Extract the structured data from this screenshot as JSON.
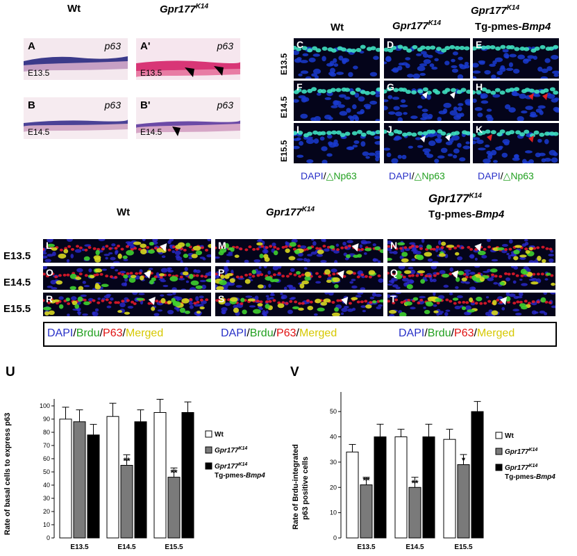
{
  "top_left": {
    "col_headers": [
      "Wt",
      "Gpr177",
      "K14"
    ],
    "panels": [
      {
        "label": "A",
        "gene": "p63",
        "age": "E13.5"
      },
      {
        "label": "A'",
        "gene": "p63",
        "age": "E13.5"
      },
      {
        "label": "B",
        "gene": "p63",
        "age": "E14.5"
      },
      {
        "label": "B'",
        "gene": "p63",
        "age": "E14.5"
      }
    ]
  },
  "top_right": {
    "col_headers": {
      "wt": "Wt",
      "ko": "Gpr177",
      "ko_sup": "K14",
      "tg_line2": "Tg-pmes-",
      "tg_gene": "Bmp4"
    },
    "row_labels": [
      "E13.5",
      "E14.5",
      "E15.5"
    ],
    "panel_labels": [
      "C",
      "D",
      "E",
      "F",
      "G",
      "H",
      "I",
      "J",
      "K"
    ],
    "stain_a": "DAPI",
    "stain_sep": "/",
    "stain_b": "△Np63"
  },
  "middle": {
    "col_headers": {
      "wt": "Wt",
      "ko": "Gpr177",
      "ko_sup": "K14",
      "tg_line2": "Tg-pmes-",
      "tg_gene": "Bmp4"
    },
    "row_labels": [
      "E13.5",
      "E14.5",
      "E15.5"
    ],
    "panel_labels": [
      "L",
      "M",
      "N",
      "O",
      "P",
      "Q",
      "R",
      "S",
      "T"
    ],
    "legend": {
      "dapi": "DAPI",
      "sep": "/",
      "brdu": "Brdu",
      "p63": "P63",
      "merged": "Merged"
    }
  },
  "chart_U": {
    "panel_letter": "U",
    "ylabel": "Rate of basal cells to express p63",
    "yticks": [
      0,
      10,
      20,
      30,
      40,
      50,
      60,
      70,
      80,
      90,
      100
    ],
    "categories": [
      "E13.5",
      "E14.5",
      "E15.5"
    ],
    "annotations": [
      "**",
      "**"
    ],
    "legend": {
      "wt": "Wt",
      "ko": "Gpr177",
      "ko_sup": "K14",
      "tg_line2": "Tg-pmes-",
      "tg_gene": "Bmp4"
    }
  },
  "chart_V": {
    "panel_letter": "V",
    "ylabel_line1": "Rate of Brdu-integrated",
    "ylabel_line2": "p63 positive cells",
    "yticks": [
      0,
      10,
      20,
      30,
      40,
      50
    ],
    "categories": [
      "E13.5",
      "E14.5",
      "E15.5"
    ],
    "annotations": [
      "**",
      "**",
      "*"
    ],
    "legend": {
      "wt": "Wt",
      "ko": "Gpr177",
      "ko_sup": "K14",
      "tg_line2": "Tg-pmes-",
      "tg_gene": "Bmp4"
    }
  },
  "chart_data": [
    {
      "type": "bar",
      "title": "",
      "ylabel": "Rate of basal cells to express p63",
      "categories": [
        "E13.5",
        "E14.5",
        "E15.5"
      ],
      "ylim": [
        0,
        100
      ],
      "series": [
        {
          "name": "Wt",
          "values": [
            90,
            92,
            95
          ],
          "errors": [
            9,
            10,
            10
          ],
          "color": "#ffffff"
        },
        {
          "name": "Gpr177K14",
          "values": [
            88,
            55,
            46
          ],
          "errors": [
            9,
            8,
            7
          ],
          "color": "#7a7a7a"
        },
        {
          "name": "Gpr177K14 Tg-pmes-Bmp4",
          "values": [
            78,
            88,
            95
          ],
          "errors": [
            8,
            9,
            8
          ],
          "color": "#000000"
        }
      ]
    },
    {
      "type": "bar",
      "title": "",
      "ylabel": "Rate of Brdu-integrated p63 positive cells",
      "categories": [
        "E13.5",
        "E14.5",
        "E15.5"
      ],
      "ylim": [
        0,
        55
      ],
      "series": [
        {
          "name": "Wt",
          "values": [
            34,
            40,
            39
          ],
          "errors": [
            3,
            3,
            4
          ],
          "color": "#ffffff"
        },
        {
          "name": "Gpr177K14",
          "values": [
            21,
            20,
            29
          ],
          "errors": [
            3,
            4,
            4
          ],
          "color": "#7a7a7a"
        },
        {
          "name": "Gpr177K14 Tg-pmes-Bmp4",
          "values": [
            40,
            40,
            50
          ],
          "errors": [
            5,
            5,
            4
          ],
          "color": "#000000"
        }
      ]
    }
  ]
}
